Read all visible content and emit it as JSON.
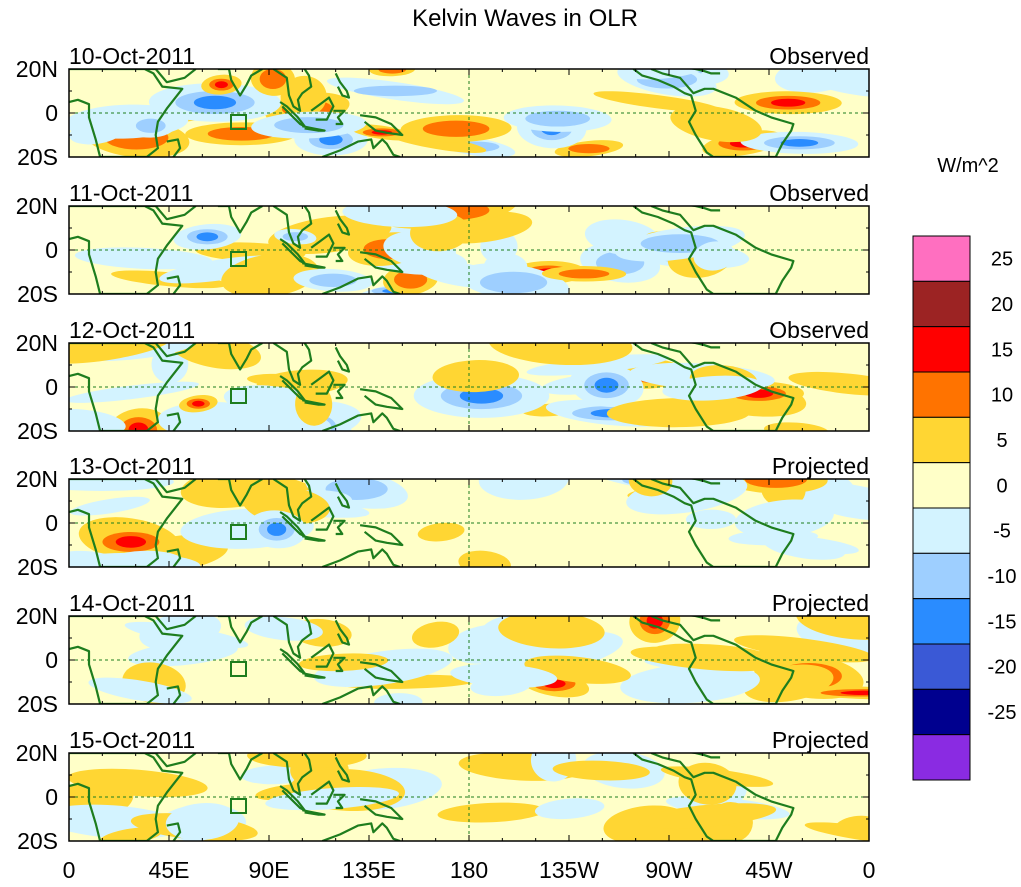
{
  "title": "Kelvin Waves in OLR",
  "units": "W/m^2",
  "lat_labels": [
    "20N",
    "0",
    "20S"
  ],
  "lon_labels": [
    "0",
    "45E",
    "90E",
    "135E",
    "180",
    "135W",
    "90W",
    "45W",
    "0"
  ],
  "panels": [
    {
      "date": "10-Oct-2011",
      "kind": "Observed"
    },
    {
      "date": "11-Oct-2011",
      "kind": "Observed"
    },
    {
      "date": "12-Oct-2011",
      "kind": "Observed"
    },
    {
      "date": "13-Oct-2011",
      "kind": "Projected"
    },
    {
      "date": "14-Oct-2011",
      "kind": "Projected"
    },
    {
      "date": "15-Oct-2011",
      "kind": "Projected"
    }
  ],
  "colorbar": {
    "labels": [
      "25",
      "20",
      "15",
      "10",
      "5",
      "0",
      "-5",
      "-10",
      "-15",
      "-20",
      "-25"
    ],
    "colors": [
      "#ff6fc0",
      "#9c2323",
      "#ff0000",
      "#ff7300",
      "#ffd633",
      "#ffffc8",
      "#d3f3ff",
      "#9ecfff",
      "#2a8cff",
      "#3a59d6",
      "#00008f",
      "#8a2be2"
    ]
  },
  "colors": {
    "coast": "#1e7d1e",
    "equator": "#1e7d1e"
  }
}
